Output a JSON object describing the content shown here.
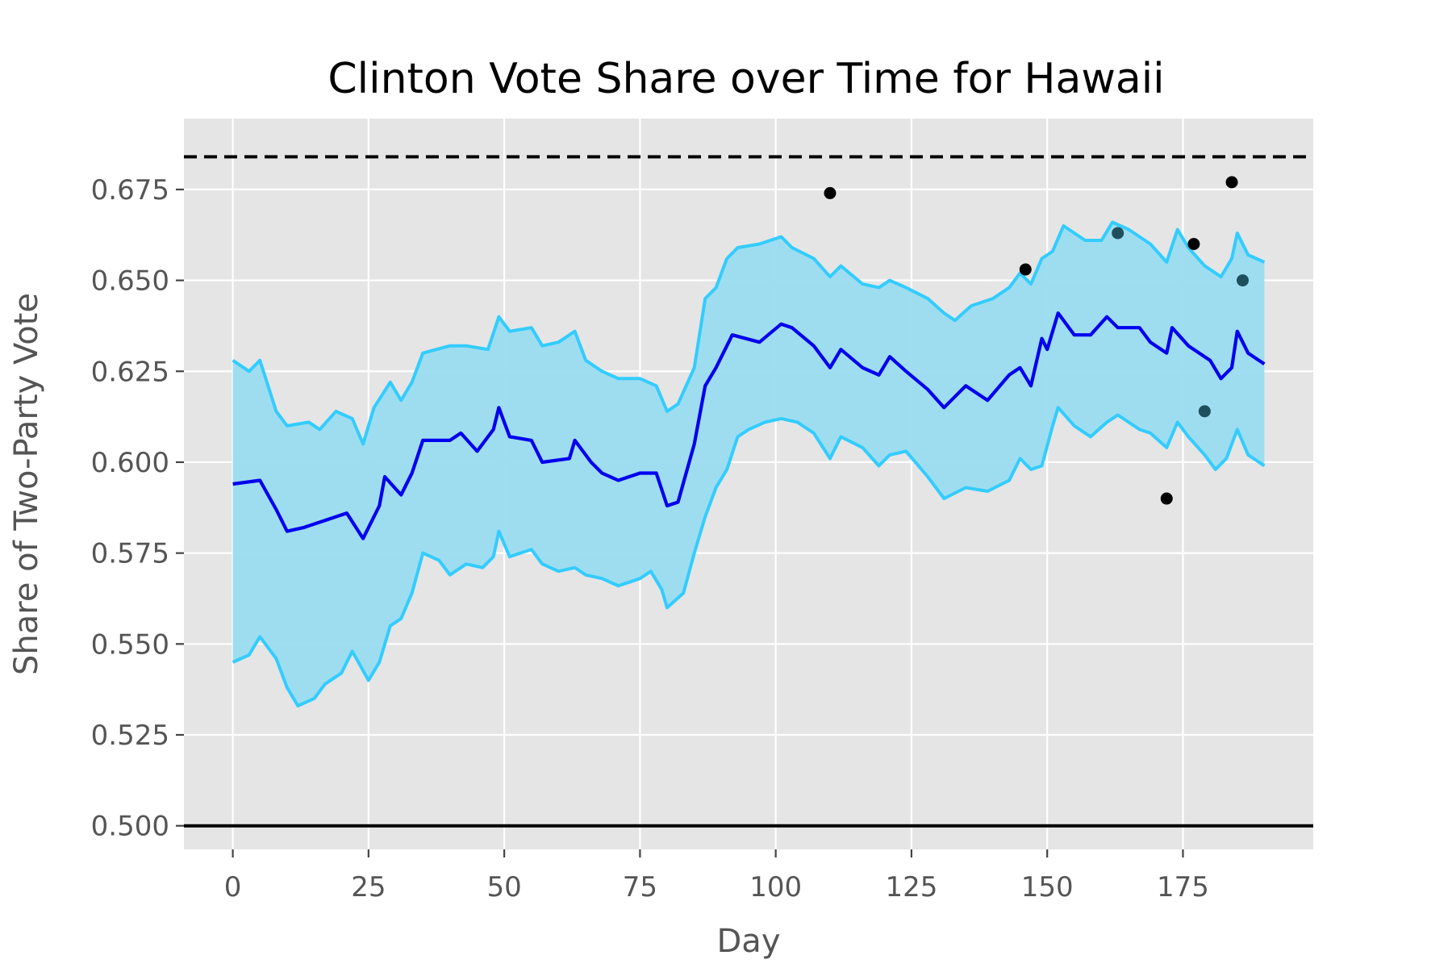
{
  "chart_data": {
    "type": "line",
    "title": "Clinton Vote Share over Time for Hawaii",
    "xlabel": "Day",
    "ylabel": "Share of Two-Party Vote",
    "xlim": [
      -9,
      199
    ],
    "ylim": [
      0.4935,
      0.6945
    ],
    "xticks": [
      0,
      25,
      50,
      75,
      100,
      125,
      150,
      175
    ],
    "xtick_labels": [
      "0",
      "25",
      "50",
      "75",
      "100",
      "125",
      "150",
      "175"
    ],
    "yticks": [
      0.5,
      0.525,
      0.55,
      0.575,
      0.6,
      0.625,
      0.65,
      0.675
    ],
    "ytick_labels": [
      "0.500",
      "0.525",
      "0.550",
      "0.575",
      "0.600",
      "0.625",
      "0.650",
      "0.675"
    ],
    "grid": true,
    "reference_lines": [
      {
        "y": 0.684,
        "style": "dashed",
        "color": "#000000"
      },
      {
        "y": 0.5,
        "style": "solid",
        "color": "#000000"
      }
    ],
    "series": [
      {
        "role": "mean",
        "color": "#0000ee",
        "points": [
          [
            0,
            0.594
          ],
          [
            5,
            0.595
          ],
          [
            8,
            0.587
          ],
          [
            10,
            0.581
          ],
          [
            13,
            0.582
          ],
          [
            17,
            0.584
          ],
          [
            21,
            0.586
          ],
          [
            24,
            0.579
          ],
          [
            27,
            0.588
          ],
          [
            28,
            0.596
          ],
          [
            31,
            0.591
          ],
          [
            33,
            0.597
          ],
          [
            35,
            0.606
          ],
          [
            40,
            0.606
          ],
          [
            42,
            0.608
          ],
          [
            45,
            0.603
          ],
          [
            48,
            0.609
          ],
          [
            49,
            0.615
          ],
          [
            51,
            0.607
          ],
          [
            55,
            0.606
          ],
          [
            57,
            0.6
          ],
          [
            62,
            0.601
          ],
          [
            63,
            0.606
          ],
          [
            66,
            0.6
          ],
          [
            68,
            0.597
          ],
          [
            71,
            0.595
          ],
          [
            75,
            0.597
          ],
          [
            78,
            0.597
          ],
          [
            80,
            0.588
          ],
          [
            82,
            0.589
          ],
          [
            85,
            0.605
          ],
          [
            87,
            0.621
          ],
          [
            89,
            0.626
          ],
          [
            92,
            0.635
          ],
          [
            97,
            0.633
          ],
          [
            101,
            0.638
          ],
          [
            103,
            0.637
          ],
          [
            107,
            0.632
          ],
          [
            110,
            0.626
          ],
          [
            112,
            0.631
          ],
          [
            116,
            0.626
          ],
          [
            119,
            0.624
          ],
          [
            121,
            0.629
          ],
          [
            124,
            0.625
          ],
          [
            128,
            0.62
          ],
          [
            131,
            0.615
          ],
          [
            135,
            0.621
          ],
          [
            139,
            0.617
          ],
          [
            143,
            0.624
          ],
          [
            145,
            0.626
          ],
          [
            147,
            0.621
          ],
          [
            149,
            0.634
          ],
          [
            150,
            0.631
          ],
          [
            152,
            0.641
          ],
          [
            155,
            0.635
          ],
          [
            158,
            0.635
          ],
          [
            161,
            0.64
          ],
          [
            163,
            0.637
          ],
          [
            167,
            0.637
          ],
          [
            169,
            0.633
          ],
          [
            172,
            0.63
          ],
          [
            173,
            0.637
          ],
          [
            176,
            0.632
          ],
          [
            180,
            0.628
          ],
          [
            182,
            0.623
          ],
          [
            184,
            0.626
          ],
          [
            185,
            0.636
          ],
          [
            187,
            0.63
          ],
          [
            190,
            0.627
          ]
        ]
      },
      {
        "role": "upper-bound",
        "color": "#33ccff",
        "points": [
          [
            0,
            0.628
          ],
          [
            3,
            0.625
          ],
          [
            5,
            0.628
          ],
          [
            8,
            0.614
          ],
          [
            10,
            0.61
          ],
          [
            14,
            0.611
          ],
          [
            16,
            0.609
          ],
          [
            19,
            0.614
          ],
          [
            22,
            0.612
          ],
          [
            24,
            0.605
          ],
          [
            26,
            0.615
          ],
          [
            29,
            0.622
          ],
          [
            31,
            0.617
          ],
          [
            33,
            0.622
          ],
          [
            35,
            0.63
          ],
          [
            40,
            0.632
          ],
          [
            43,
            0.632
          ],
          [
            47,
            0.631
          ],
          [
            49,
            0.64
          ],
          [
            51,
            0.636
          ],
          [
            55,
            0.637
          ],
          [
            57,
            0.632
          ],
          [
            60,
            0.633
          ],
          [
            63,
            0.636
          ],
          [
            65,
            0.628
          ],
          [
            68,
            0.625
          ],
          [
            71,
            0.623
          ],
          [
            75,
            0.623
          ],
          [
            78,
            0.621
          ],
          [
            80,
            0.614
          ],
          [
            82,
            0.616
          ],
          [
            85,
            0.626
          ],
          [
            87,
            0.645
          ],
          [
            89,
            0.648
          ],
          [
            91,
            0.656
          ],
          [
            93,
            0.659
          ],
          [
            97,
            0.66
          ],
          [
            101,
            0.662
          ],
          [
            103,
            0.659
          ],
          [
            107,
            0.656
          ],
          [
            110,
            0.651
          ],
          [
            112,
            0.654
          ],
          [
            116,
            0.649
          ],
          [
            119,
            0.648
          ],
          [
            121,
            0.65
          ],
          [
            124,
            0.648
          ],
          [
            128,
            0.645
          ],
          [
            131,
            0.641
          ],
          [
            133,
            0.639
          ],
          [
            136,
            0.643
          ],
          [
            140,
            0.645
          ],
          [
            143,
            0.648
          ],
          [
            145,
            0.652
          ],
          [
            147,
            0.649
          ],
          [
            149,
            0.656
          ],
          [
            151,
            0.658
          ],
          [
            153,
            0.665
          ],
          [
            157,
            0.661
          ],
          [
            160,
            0.661
          ],
          [
            162,
            0.666
          ],
          [
            165,
            0.664
          ],
          [
            169,
            0.66
          ],
          [
            172,
            0.655
          ],
          [
            174,
            0.664
          ],
          [
            176,
            0.659
          ],
          [
            179,
            0.654
          ],
          [
            182,
            0.651
          ],
          [
            184,
            0.656
          ],
          [
            185,
            0.663
          ],
          [
            187,
            0.657
          ],
          [
            190,
            0.655
          ]
        ]
      },
      {
        "role": "lower-bound",
        "color": "#33ccff",
        "points": [
          [
            0,
            0.545
          ],
          [
            3,
            0.547
          ],
          [
            5,
            0.552
          ],
          [
            8,
            0.546
          ],
          [
            10,
            0.538
          ],
          [
            12,
            0.533
          ],
          [
            15,
            0.535
          ],
          [
            17,
            0.539
          ],
          [
            20,
            0.542
          ],
          [
            22,
            0.548
          ],
          [
            25,
            0.54
          ],
          [
            27,
            0.545
          ],
          [
            29,
            0.555
          ],
          [
            31,
            0.557
          ],
          [
            33,
            0.564
          ],
          [
            35,
            0.575
          ],
          [
            38,
            0.573
          ],
          [
            40,
            0.569
          ],
          [
            43,
            0.572
          ],
          [
            46,
            0.571
          ],
          [
            48,
            0.574
          ],
          [
            49,
            0.581
          ],
          [
            51,
            0.574
          ],
          [
            55,
            0.576
          ],
          [
            57,
            0.572
          ],
          [
            60,
            0.57
          ],
          [
            63,
            0.571
          ],
          [
            65,
            0.569
          ],
          [
            68,
            0.568
          ],
          [
            71,
            0.566
          ],
          [
            75,
            0.568
          ],
          [
            77,
            0.57
          ],
          [
            79,
            0.565
          ],
          [
            80,
            0.56
          ],
          [
            83,
            0.564
          ],
          [
            85,
            0.575
          ],
          [
            87,
            0.585
          ],
          [
            89,
            0.593
          ],
          [
            91,
            0.598
          ],
          [
            93,
            0.607
          ],
          [
            95,
            0.609
          ],
          [
            98,
            0.611
          ],
          [
            101,
            0.612
          ],
          [
            104,
            0.611
          ],
          [
            107,
            0.608
          ],
          [
            110,
            0.601
          ],
          [
            112,
            0.607
          ],
          [
            116,
            0.604
          ],
          [
            119,
            0.599
          ],
          [
            121,
            0.602
          ],
          [
            124,
            0.603
          ],
          [
            128,
            0.596
          ],
          [
            131,
            0.59
          ],
          [
            135,
            0.593
          ],
          [
            139,
            0.592
          ],
          [
            143,
            0.595
          ],
          [
            145,
            0.601
          ],
          [
            147,
            0.598
          ],
          [
            149,
            0.599
          ],
          [
            151,
            0.61
          ],
          [
            152,
            0.615
          ],
          [
            155,
            0.61
          ],
          [
            158,
            0.607
          ],
          [
            161,
            0.611
          ],
          [
            163,
            0.613
          ],
          [
            167,
            0.609
          ],
          [
            169,
            0.608
          ],
          [
            172,
            0.604
          ],
          [
            174,
            0.611
          ],
          [
            176,
            0.607
          ],
          [
            179,
            0.602
          ],
          [
            181,
            0.598
          ],
          [
            183,
            0.601
          ],
          [
            185,
            0.609
          ],
          [
            187,
            0.602
          ],
          [
            190,
            0.599
          ]
        ]
      }
    ],
    "polls": [
      {
        "x": 110,
        "y": 0.674,
        "color": "#000000"
      },
      {
        "x": 146,
        "y": 0.653,
        "color": "#000000"
      },
      {
        "x": 163,
        "y": 0.663,
        "color": "#1f4f5c"
      },
      {
        "x": 172,
        "y": 0.59,
        "color": "#000000"
      },
      {
        "x": 177,
        "y": 0.66,
        "color": "#000000"
      },
      {
        "x": 179,
        "y": 0.614,
        "color": "#1f4f5c"
      },
      {
        "x": 184,
        "y": 0.677,
        "color": "#000000"
      },
      {
        "x": 186,
        "y": 0.65,
        "color": "#1f4f5c"
      }
    ],
    "band_fill": "#9adcf0",
    "panel_background": "#e5e5e5"
  }
}
